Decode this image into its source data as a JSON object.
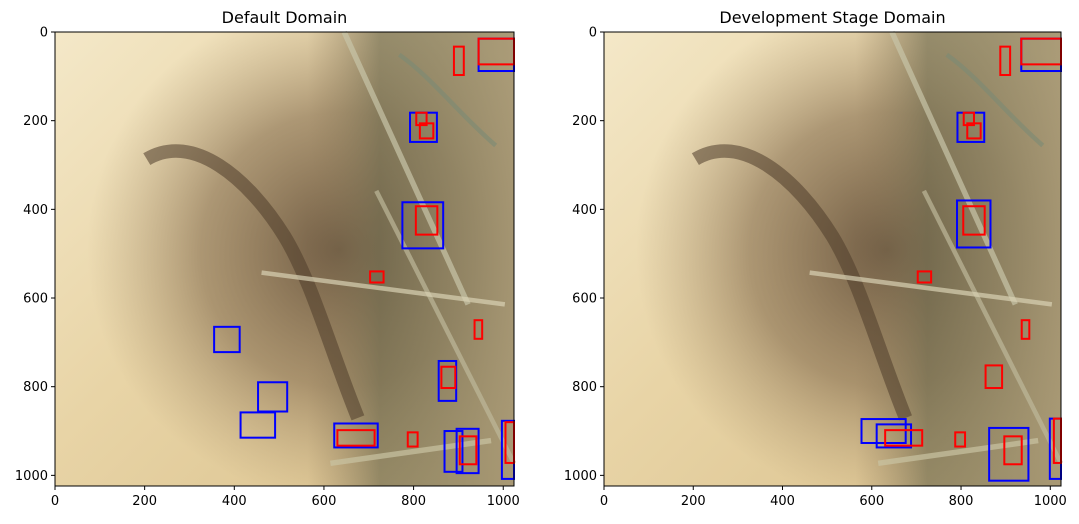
{
  "chart_data": [
    {
      "type": "image-with-boxes",
      "title": "Default Domain",
      "xlim": [
        0,
        1024
      ],
      "ylim": [
        1024,
        0
      ],
      "xticks": [
        0,
        200,
        400,
        600,
        800,
        1000
      ],
      "yticks": [
        0,
        200,
        400,
        600,
        800,
        1000
      ],
      "colors": {
        "blue": "#0000ff",
        "red": "#ff0000"
      },
      "boxes": [
        {
          "color": "blue",
          "x0": 945,
          "y0": 15,
          "x1": 1024,
          "y1": 88
        },
        {
          "color": "red",
          "x0": 945,
          "y0": 15,
          "x1": 1024,
          "y1": 73
        },
        {
          "color": "red",
          "x0": 890,
          "y0": 33,
          "x1": 912,
          "y1": 97
        },
        {
          "color": "blue",
          "x0": 792,
          "y0": 182,
          "x1": 852,
          "y1": 248
        },
        {
          "color": "red",
          "x0": 806,
          "y0": 182,
          "x1": 829,
          "y1": 210
        },
        {
          "color": "red",
          "x0": 814,
          "y0": 206,
          "x1": 844,
          "y1": 240
        },
        {
          "color": "blue",
          "x0": 775,
          "y0": 384,
          "x1": 866,
          "y1": 488
        },
        {
          "color": "red",
          "x0": 805,
          "y0": 393,
          "x1": 853,
          "y1": 457
        },
        {
          "color": "red",
          "x0": 703,
          "y0": 540,
          "x1": 733,
          "y1": 565
        },
        {
          "color": "red",
          "x0": 936,
          "y0": 650,
          "x1": 953,
          "y1": 692
        },
        {
          "color": "blue",
          "x0": 355,
          "y0": 665,
          "x1": 412,
          "y1": 722
        },
        {
          "color": "blue",
          "x0": 856,
          "y0": 742,
          "x1": 895,
          "y1": 832
        },
        {
          "color": "red",
          "x0": 862,
          "y0": 755,
          "x1": 893,
          "y1": 803
        },
        {
          "color": "blue",
          "x0": 453,
          "y0": 790,
          "x1": 518,
          "y1": 856
        },
        {
          "color": "blue",
          "x0": 414,
          "y0": 858,
          "x1": 491,
          "y1": 915
        },
        {
          "color": "blue",
          "x0": 623,
          "y0": 883,
          "x1": 720,
          "y1": 937
        },
        {
          "color": "red",
          "x0": 630,
          "y0": 898,
          "x1": 713,
          "y1": 933
        },
        {
          "color": "red",
          "x0": 787,
          "y0": 903,
          "x1": 809,
          "y1": 935
        },
        {
          "color": "blue",
          "x0": 869,
          "y0": 900,
          "x1": 909,
          "y1": 992
        },
        {
          "color": "blue",
          "x0": 896,
          "y0": 895,
          "x1": 945,
          "y1": 995
        },
        {
          "color": "red",
          "x0": 903,
          "y0": 912,
          "x1": 940,
          "y1": 975
        },
        {
          "color": "blue",
          "x0": 997,
          "y0": 877,
          "x1": 1024,
          "y1": 1008
        },
        {
          "color": "red",
          "x0": 1005,
          "y0": 880,
          "x1": 1024,
          "y1": 972
        }
      ]
    },
    {
      "type": "image-with-boxes",
      "title": "Development Stage Domain",
      "xlim": [
        0,
        1024
      ],
      "ylim": [
        1024,
        0
      ],
      "xticks": [
        0,
        200,
        400,
        600,
        800,
        1000
      ],
      "yticks": [
        0,
        200,
        400,
        600,
        800,
        1000
      ],
      "colors": {
        "blue": "#0000ff",
        "red": "#ff0000"
      },
      "boxes": [
        {
          "color": "blue",
          "x0": 935,
          "y0": 15,
          "x1": 1024,
          "y1": 88
        },
        {
          "color": "red",
          "x0": 935,
          "y0": 15,
          "x1": 1024,
          "y1": 73
        },
        {
          "color": "red",
          "x0": 888,
          "y0": 33,
          "x1": 910,
          "y1": 97
        },
        {
          "color": "blue",
          "x0": 792,
          "y0": 182,
          "x1": 852,
          "y1": 248
        },
        {
          "color": "red",
          "x0": 806,
          "y0": 182,
          "x1": 829,
          "y1": 210
        },
        {
          "color": "red",
          "x0": 814,
          "y0": 206,
          "x1": 844,
          "y1": 240
        },
        {
          "color": "blue",
          "x0": 791,
          "y0": 380,
          "x1": 866,
          "y1": 486
        },
        {
          "color": "red",
          "x0": 805,
          "y0": 393,
          "x1": 853,
          "y1": 457
        },
        {
          "color": "red",
          "x0": 703,
          "y0": 540,
          "x1": 733,
          "y1": 565
        },
        {
          "color": "red",
          "x0": 936,
          "y0": 650,
          "x1": 953,
          "y1": 692
        },
        {
          "color": "red",
          "x0": 855,
          "y0": 752,
          "x1": 892,
          "y1": 803
        },
        {
          "color": "blue",
          "x0": 577,
          "y0": 873,
          "x1": 676,
          "y1": 927
        },
        {
          "color": "blue",
          "x0": 611,
          "y0": 885,
          "x1": 688,
          "y1": 937
        },
        {
          "color": "red",
          "x0": 630,
          "y0": 898,
          "x1": 713,
          "y1": 933
        },
        {
          "color": "red",
          "x0": 787,
          "y0": 903,
          "x1": 809,
          "y1": 935
        },
        {
          "color": "blue",
          "x0": 863,
          "y0": 893,
          "x1": 951,
          "y1": 1012
        },
        {
          "color": "red",
          "x0": 897,
          "y0": 912,
          "x1": 936,
          "y1": 975
        },
        {
          "color": "blue",
          "x0": 999,
          "y0": 872,
          "x1": 1024,
          "y1": 1008
        },
        {
          "color": "red",
          "x0": 1008,
          "y0": 872,
          "x1": 1024,
          "y1": 972
        }
      ]
    }
  ]
}
